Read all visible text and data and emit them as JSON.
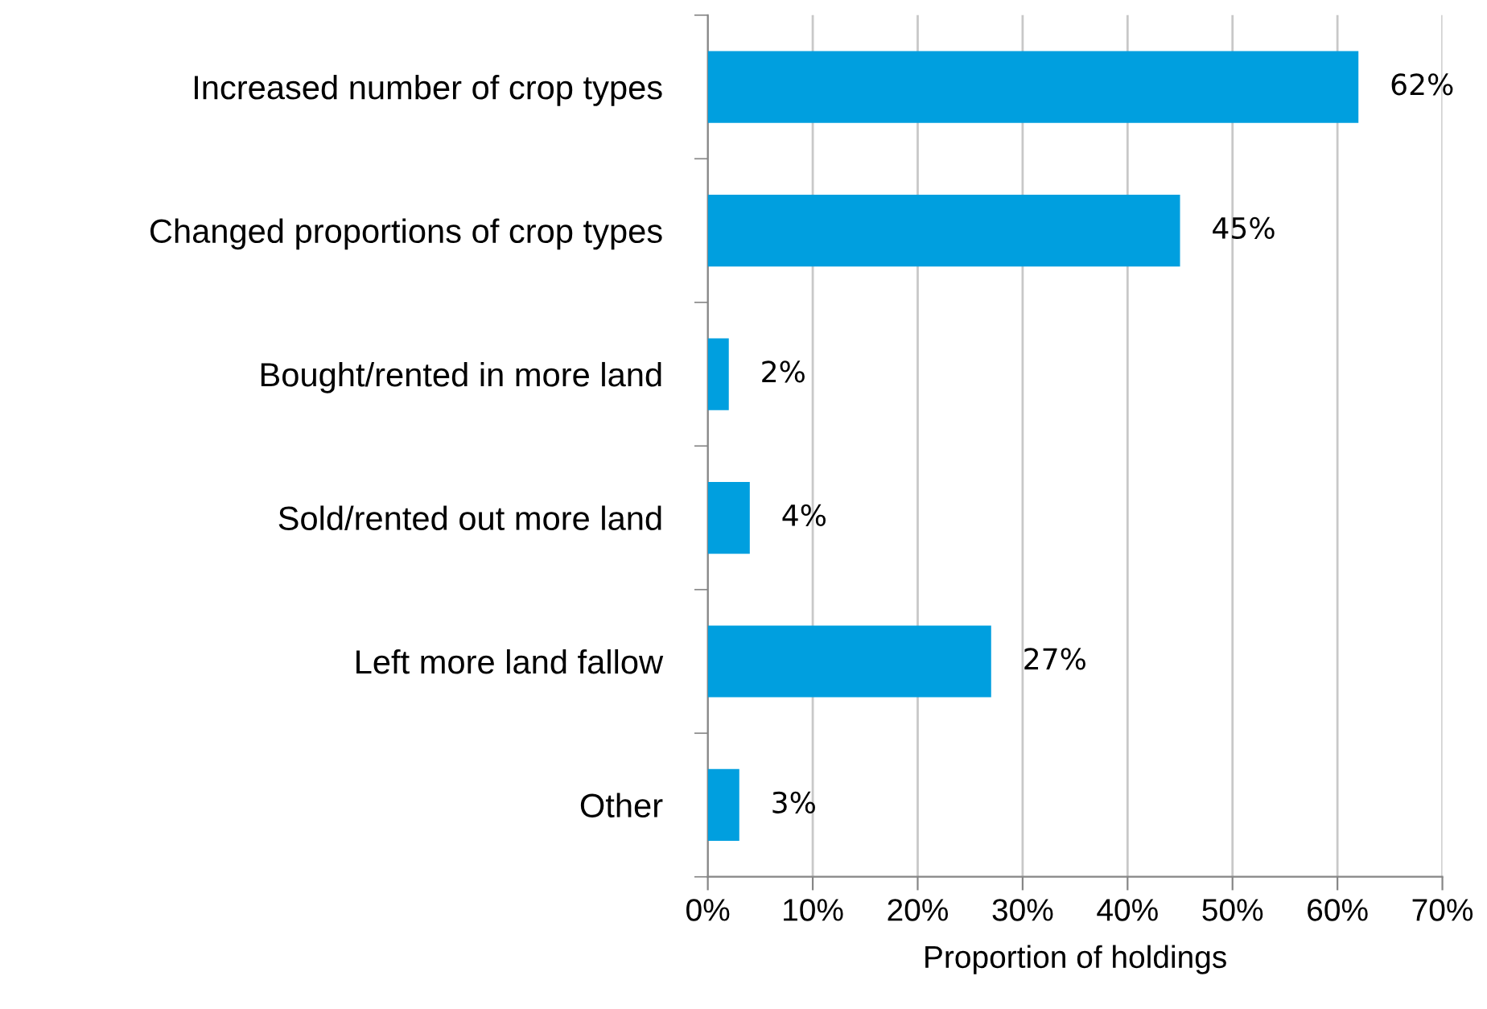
{
  "chart_data": {
    "type": "bar",
    "orientation": "horizontal",
    "xlabel": "Proportion of holdings",
    "categories": [
      "Increased number of crop types",
      "Changed proportions of crop types",
      "Bought/rented in more land",
      "Sold/rented out more land",
      "Left more land fallow",
      "Other"
    ],
    "values": [
      62,
      45,
      2,
      4,
      27,
      3
    ],
    "color": "#009fdf",
    "value_labels": [
      "62%",
      "45%",
      "2%",
      "4%",
      "27%",
      "3%"
    ],
    "xlim": [
      0,
      70
    ],
    "xticks": [
      {
        "value": 0,
        "label": "0%"
      },
      {
        "value": 10,
        "label": "10%"
      },
      {
        "value": 20,
        "label": "20%"
      },
      {
        "value": 30,
        "label": "30%"
      },
      {
        "value": 40,
        "label": "40%"
      },
      {
        "value": 50,
        "label": "50%"
      },
      {
        "value": 60,
        "label": "60%"
      },
      {
        "value": 70,
        "label": "70%"
      }
    ],
    "grid": "x",
    "legend": false
  }
}
